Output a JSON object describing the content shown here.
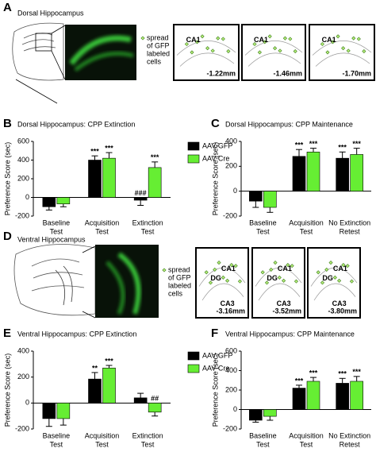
{
  "panel_a": {
    "label": "A",
    "title": "Dorsal Hippocampus",
    "legend_lines": [
      "spread",
      "of GFP",
      "labeled",
      "cells"
    ],
    "sections": [
      {
        "regions": [
          "CA1"
        ],
        "level": "-1.22mm"
      },
      {
        "regions": [
          "CA1"
        ],
        "level": "-1.46mm"
      },
      {
        "regions": [
          "CA1"
        ],
        "level": "-1.70mm"
      }
    ]
  },
  "panel_d": {
    "label": "D",
    "title": "Ventral Hippocampus",
    "legend_lines": [
      "spread",
      "of GFP",
      "labeled",
      "cells"
    ],
    "sections": [
      {
        "regions": [
          "CA1",
          "DG",
          "CA3"
        ],
        "level": "-3.16mm"
      },
      {
        "regions": [
          "CA1",
          "DG",
          "CA3"
        ],
        "level": "-3.52mm"
      },
      {
        "regions": [
          "CA1",
          "DG",
          "CA3"
        ],
        "level": "-3.80mm"
      }
    ]
  },
  "chart_data": [
    {
      "type": "bar",
      "panel_label": "B",
      "title": "Dorsal Hippocampus: CPP Extinction",
      "y_label": "Preference Score (sec)",
      "categories": [
        [
          "Baseline",
          "Test"
        ],
        [
          "Acquisition",
          "Test"
        ],
        [
          "Extinction",
          "Test"
        ]
      ],
      "series": [
        {
          "name": "AAV-GFP",
          "color": "#000000",
          "values": [
            -100,
            400,
            -30
          ],
          "errors": [
            35,
            45,
            55
          ],
          "annotations": [
            null,
            "***",
            "###"
          ]
        },
        {
          "name": "AAV-Cre",
          "color": "#66ee33",
          "values": [
            -70,
            420,
            320
          ],
          "errors": [
            30,
            60,
            60
          ],
          "annotations": [
            null,
            "***",
            "***"
          ]
        }
      ],
      "ylim": [
        -200,
        600
      ],
      "yticks": [
        -200,
        0,
        200,
        400,
        600
      ],
      "legend": "right"
    },
    {
      "type": "bar",
      "panel_label": "C",
      "title": "Dorsal Hippocampus: CPP Maintenance",
      "y_label": "Preference Score (sec)",
      "categories": [
        [
          "Baseline",
          "Test"
        ],
        [
          "Acquisition",
          "Test"
        ],
        [
          "No Extinction",
          "Retest"
        ]
      ],
      "series": [
        {
          "name": "AAV-GFP",
          "color": "#000000",
          "values": [
            -80,
            280,
            265
          ],
          "errors": [
            50,
            55,
            50
          ],
          "annotations": [
            null,
            "***",
            "***"
          ]
        },
        {
          "name": "AAV-Cre",
          "color": "#66ee33",
          "values": [
            -130,
            315,
            295
          ],
          "errors": [
            40,
            30,
            50
          ],
          "annotations": [
            null,
            "***",
            "***"
          ]
        }
      ],
      "ylim": [
        -200,
        400
      ],
      "yticks": [
        -200,
        0,
        200,
        400
      ],
      "legend": false
    },
    {
      "type": "bar",
      "panel_label": "E",
      "title": "Ventral Hippocampus: CPP Extinction",
      "y_label": "Preference Score (sec)",
      "categories": [
        [
          "Baseline",
          "Test"
        ],
        [
          "Acquisition",
          "Test"
        ],
        [
          "Extinction",
          "Test"
        ]
      ],
      "series": [
        {
          "name": "AAV-GFP",
          "color": "#000000",
          "values": [
            -120,
            185,
            40
          ],
          "errors": [
            60,
            50,
            35
          ],
          "annotations": [
            null,
            "**",
            null
          ]
        },
        {
          "name": "AAV-Cre",
          "color": "#66ee33",
          "values": [
            -120,
            270,
            -70
          ],
          "errors": [
            50,
            20,
            30
          ],
          "annotations": [
            null,
            "***",
            "##"
          ]
        }
      ],
      "ylim": [
        -200,
        400
      ],
      "yticks": [
        -200,
        0,
        200,
        400
      ],
      "legend": "right"
    },
    {
      "type": "bar",
      "panel_label": "F",
      "title": "Ventral Hippocampus: CPP Maintenance",
      "y_label": "Preference Score (sec)",
      "categories": [
        [
          "Baseline",
          "Test"
        ],
        [
          "Acquisition",
          "Test"
        ],
        [
          "No Extinction",
          "Retest"
        ]
      ],
      "series": [
        {
          "name": "AAV-GFP",
          "color": "#000000",
          "values": [
            -110,
            220,
            270
          ],
          "errors": [
            20,
            30,
            50
          ],
          "annotations": [
            null,
            "***",
            "***"
          ]
        },
        {
          "name": "AAV-Cre",
          "color": "#66ee33",
          "values": [
            -70,
            290,
            290
          ],
          "errors": [
            40,
            40,
            50
          ],
          "annotations": [
            null,
            "***",
            "***"
          ]
        }
      ],
      "ylim": [
        -200,
        600
      ],
      "yticks": [
        -200,
        0,
        200,
        400,
        600
      ],
      "legend": false
    }
  ]
}
